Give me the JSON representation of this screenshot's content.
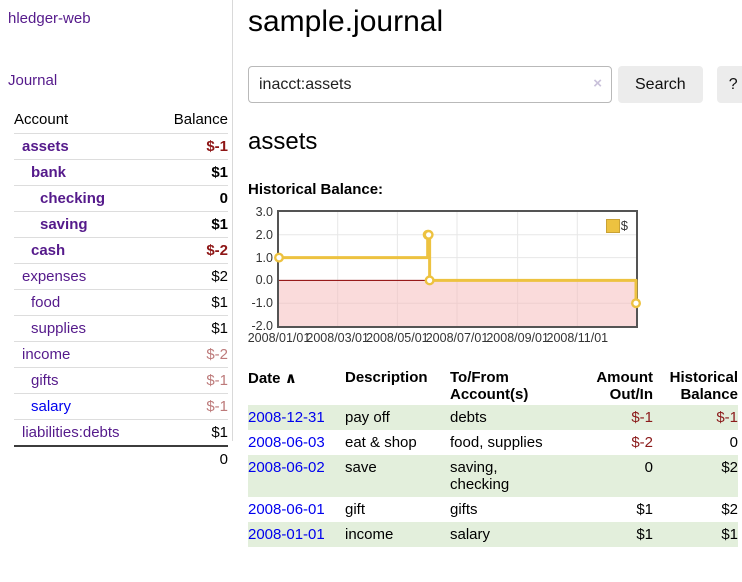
{
  "colors": {
    "link_purple": "#551a8b",
    "link_blue": "#0000ee",
    "negative_strong": "#8e1616",
    "negative_muted": "#bd7a7a",
    "table_negative": "#8b1a1a",
    "row_stripe_green": "#e3efdc",
    "chart_series": "#edc240",
    "chart_negative_fill": "#f5b8b8",
    "chart_zero_line": "#8b0000"
  },
  "sidebar": {
    "brand": "hledger-web",
    "journal_label": "Journal",
    "table": {
      "account_header": "Account",
      "balance_header": "Balance",
      "accounts": [
        {
          "name": "assets",
          "depth": 1,
          "bold": true,
          "balance": "$-1"
        },
        {
          "name": "bank",
          "depth": 2,
          "bold": true,
          "balance": "$1"
        },
        {
          "name": "checking",
          "depth": 3,
          "bold": true,
          "balance": "0"
        },
        {
          "name": "saving",
          "depth": 3,
          "bold": true,
          "balance": "$1"
        },
        {
          "name": "cash",
          "depth": 2,
          "bold": true,
          "balance": "$-2"
        },
        {
          "name": "expenses",
          "depth": 1,
          "bold": false,
          "balance": "$2"
        },
        {
          "name": "food",
          "depth": 2,
          "bold": false,
          "balance": "$1"
        },
        {
          "name": "supplies",
          "depth": 2,
          "bold": false,
          "balance": "$1"
        },
        {
          "name": "income",
          "depth": 1,
          "bold": false,
          "balance": "$-2"
        },
        {
          "name": "gifts",
          "depth": 2,
          "bold": false,
          "balance": "$-1"
        },
        {
          "name": "salary",
          "depth": 2,
          "bold": false,
          "balance": "$-1",
          "unvisited": true
        },
        {
          "name": "liabilities:debts",
          "depth": 1,
          "bold": false,
          "balance": "$1"
        }
      ],
      "total": "0"
    }
  },
  "header": {
    "title": "sample.journal"
  },
  "search": {
    "query": "inacct:assets",
    "clear_icon": "×",
    "button_label": "Search",
    "help_label": "?"
  },
  "main": {
    "account_heading": "assets",
    "chart_label": "Historical Balance:"
  },
  "chart_data": {
    "type": "line",
    "step": true,
    "title": "Historical Balance:",
    "legend": "$",
    "legend_position": "top-right",
    "grid": true,
    "x_range": [
      "2008-01-01",
      "2008-12-31"
    ],
    "ylim": [
      -2,
      3
    ],
    "y_ticks": [
      3.0,
      2.0,
      1.0,
      0.0,
      -1.0,
      -2.0
    ],
    "x_ticks": [
      "2008/01/01",
      "2008/03/01",
      "2008/05/01",
      "2008/07/01",
      "2008/09/01",
      "2008/11/01"
    ],
    "series": [
      {
        "name": "$",
        "color": "#edc240",
        "points": [
          [
            "2008-01-01",
            1
          ],
          [
            "2008-06-01",
            2
          ],
          [
            "2008-06-02",
            2
          ],
          [
            "2008-06-03",
            0
          ],
          [
            "2008-12-31",
            -1
          ]
        ]
      }
    ]
  },
  "transactions": {
    "headers": {
      "date": "Date",
      "sort_icon": "∧",
      "description": "Description",
      "tofrom": "To/From Account(s)",
      "amount": "Amount Out/In",
      "balance": "Historical Balance"
    },
    "rows": [
      {
        "date": "2008-12-31",
        "description": "pay off",
        "accounts": "debts",
        "amount": "$-1",
        "balance": "$-1"
      },
      {
        "date": "2008-06-03",
        "description": "eat & shop",
        "accounts": "food, supplies",
        "amount": "$-2",
        "balance": "0"
      },
      {
        "date": "2008-06-02",
        "description": "save",
        "accounts": "saving, checking",
        "amount": "0",
        "balance": "$2"
      },
      {
        "date": "2008-06-01",
        "description": "gift",
        "accounts": "gifts",
        "amount": "$1",
        "balance": "$2"
      },
      {
        "date": "2008-01-01",
        "description": "income",
        "accounts": "salary",
        "amount": "$1",
        "balance": "$1"
      }
    ]
  }
}
